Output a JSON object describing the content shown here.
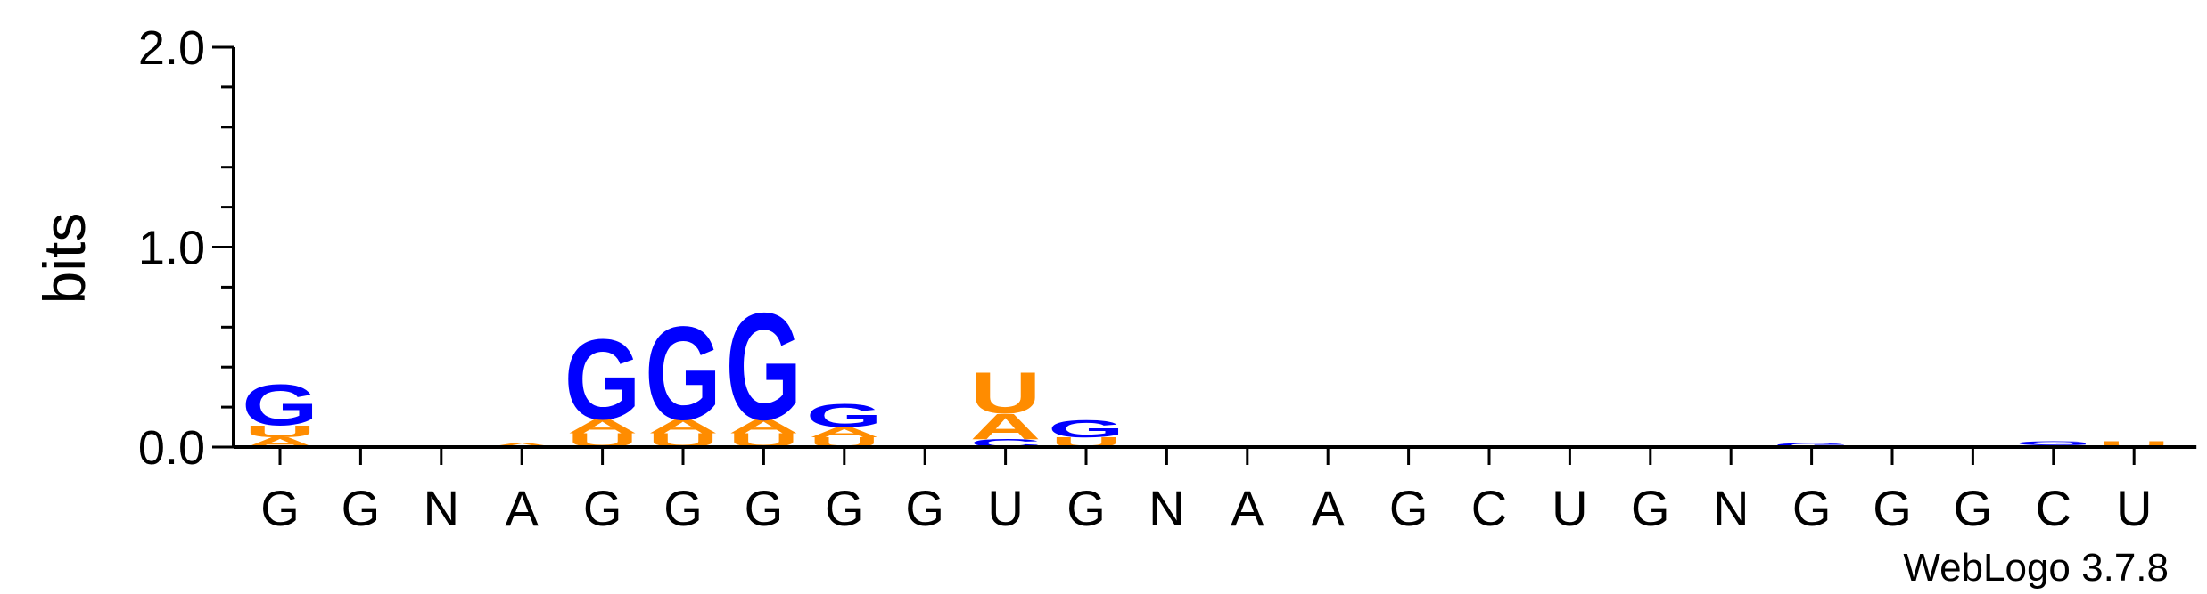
{
  "chart_data": {
    "type": "sequence-logo",
    "ylabel": "bits",
    "ylim": [
      0,
      2
    ],
    "yticks": [
      "0.0",
      "1.0",
      "2.0"
    ],
    "positions": [
      "G",
      "G",
      "N",
      "A",
      "G",
      "G",
      "G",
      "G",
      "G",
      "U",
      "G",
      "N",
      "A",
      "A",
      "G",
      "C",
      "U",
      "G",
      "N",
      "G",
      "G",
      "G",
      "C",
      "U"
    ],
    "colors": {
      "G": "#0000ff",
      "A": "#ff8c00",
      "U": "#ff8c00",
      "C": "#0000ff"
    },
    "stacks": [
      [
        {
          "letter": "A",
          "bits": 0.05
        },
        {
          "letter": "U",
          "bits": 0.06
        },
        {
          "letter": "G",
          "bits": 0.21
        }
      ],
      [],
      [],
      [
        {
          "letter": "A",
          "bits": 0.02
        }
      ],
      [
        {
          "letter": "U",
          "bits": 0.07
        },
        {
          "letter": "A",
          "bits": 0.07
        },
        {
          "letter": "G",
          "bits": 0.41
        }
      ],
      [
        {
          "letter": "U",
          "bits": 0.07
        },
        {
          "letter": "A",
          "bits": 0.07
        },
        {
          "letter": "G",
          "bits": 0.48
        }
      ],
      [
        {
          "letter": "U",
          "bits": 0.07
        },
        {
          "letter": "A",
          "bits": 0.07
        },
        {
          "letter": "G",
          "bits": 0.55
        }
      ],
      [
        {
          "letter": "U",
          "bits": 0.05
        },
        {
          "letter": "A",
          "bits": 0.05
        },
        {
          "letter": "G",
          "bits": 0.12
        }
      ],
      [],
      [
        {
          "letter": "C",
          "bits": 0.04
        },
        {
          "letter": "A",
          "bits": 0.13
        },
        {
          "letter": "U",
          "bits": 0.21
        }
      ],
      [
        {
          "letter": "U",
          "bits": 0.05
        },
        {
          "letter": "G",
          "bits": 0.09
        }
      ],
      [],
      [],
      [],
      [
        {
          "letter": "G",
          "bits": 0.01
        }
      ],
      [],
      [],
      [
        {
          "letter": "G",
          "bits": 0.01
        }
      ],
      [],
      [
        {
          "letter": "G",
          "bits": 0.02
        }
      ],
      [],
      [],
      [
        {
          "letter": "A",
          "bits": 0.01
        },
        {
          "letter": "G",
          "bits": 0.02
        }
      ],
      [
        {
          "letter": "U",
          "bits": 0.03
        }
      ]
    ]
  },
  "credit": "WebLogo 3.7.8"
}
